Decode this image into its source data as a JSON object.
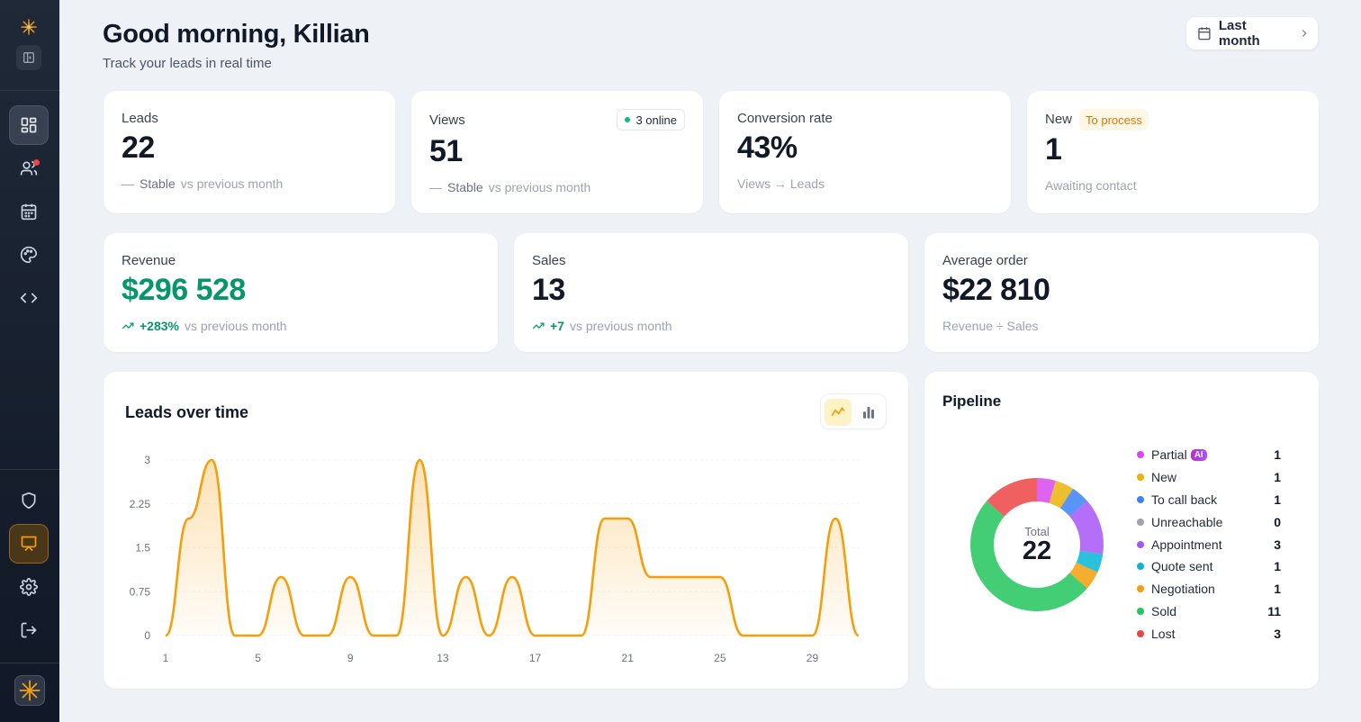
{
  "header": {
    "greeting": "Good morning, Killian",
    "subtitle": "Track your leads in real time",
    "period_label": "Last month"
  },
  "sidebar": {
    "top_icons": [
      "logo-icon",
      "panel-toggle-icon"
    ],
    "nav": [
      "dashboard-icon",
      "users-icon",
      "calendar-icon",
      "palette-icon",
      "code-icon"
    ],
    "bottom": [
      "shield-icon",
      "presentation-icon",
      "gear-icon",
      "logout-icon",
      "logo-icon"
    ],
    "notification_color": "#ef4444"
  },
  "stats": {
    "leads": {
      "label": "Leads",
      "value": "22",
      "trend": "Stable",
      "suffix": "vs previous month"
    },
    "views": {
      "label": "Views",
      "value": "51",
      "badge": "3 online",
      "trend": "Stable",
      "suffix": "vs previous month"
    },
    "conversion": {
      "label": "Conversion rate",
      "value": "43%",
      "note": "Views → Leads"
    },
    "new": {
      "label": "New",
      "badge": "To process",
      "value": "1",
      "note": "Awaiting contact"
    },
    "revenue": {
      "label": "Revenue",
      "value": "$296 528",
      "trend": "+283%",
      "suffix": "vs previous month"
    },
    "sales": {
      "label": "Sales",
      "value": "13",
      "trend": "+7",
      "suffix": "vs previous month"
    },
    "average": {
      "label": "Average order",
      "value": "$22 810",
      "note": "Revenue ÷ Sales"
    }
  },
  "leads_chart": {
    "title": "Leads over time",
    "toggle": [
      "line-chart-icon",
      "bar-chart-icon"
    ]
  },
  "pipeline": {
    "title": "Pipeline",
    "total_label": "Total",
    "total_value": "22",
    "ai_badge": "AI",
    "items": [
      {
        "label": "Partial",
        "count": "1",
        "color": "#d946ef"
      },
      {
        "label": "New",
        "count": "1",
        "color": "#eab308"
      },
      {
        "label": "To call back",
        "count": "1",
        "color": "#3b82f6"
      },
      {
        "label": "Unreachable",
        "count": "0",
        "color": "#9ca3af"
      },
      {
        "label": "Appointment",
        "count": "3",
        "color": "#a855f7"
      },
      {
        "label": "Quote sent",
        "count": "1",
        "color": "#06b6d4"
      },
      {
        "label": "Negotiation",
        "count": "1",
        "color": "#f59e0b"
      },
      {
        "label": "Sold",
        "count": "11",
        "color": "#22c55e"
      },
      {
        "label": "Lost",
        "count": "3",
        "color": "#ef4444"
      }
    ]
  },
  "chart_data": [
    {
      "type": "area",
      "title": "Leads over time",
      "x": [
        1,
        2,
        3,
        4,
        5,
        6,
        7,
        8,
        9,
        10,
        11,
        12,
        13,
        14,
        15,
        16,
        17,
        18,
        19,
        20,
        21,
        22,
        23,
        24,
        25,
        26,
        27,
        28,
        29,
        30,
        31
      ],
      "values": [
        0,
        2,
        3,
        0,
        0,
        1,
        0,
        0,
        1,
        0,
        0,
        3,
        0,
        1,
        0,
        1,
        0,
        0,
        0,
        2,
        2,
        1,
        1,
        1,
        1,
        0,
        0,
        0,
        0,
        2,
        0
      ],
      "x_ticks": [
        "1",
        "5",
        "9",
        "13",
        "17",
        "21",
        "25",
        "29"
      ],
      "y_ticks": [
        "0",
        "0.75",
        "1.5",
        "2.25",
        "3"
      ],
      "ylim": [
        0,
        3
      ],
      "color": "#f59e0b"
    },
    {
      "type": "pie",
      "title": "Pipeline",
      "categories": [
        "Partial",
        "New",
        "To call back",
        "Unreachable",
        "Appointment",
        "Quote sent",
        "Negotiation",
        "Sold",
        "Lost"
      ],
      "values": [
        1,
        1,
        1,
        0,
        3,
        1,
        1,
        11,
        3
      ]
    }
  ]
}
